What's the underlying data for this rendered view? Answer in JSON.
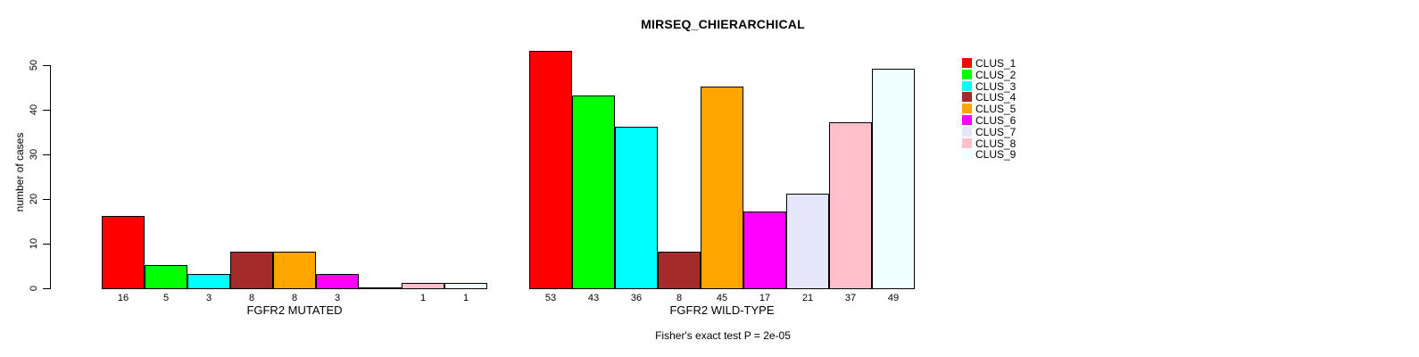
{
  "chart_data": {
    "type": "bar",
    "title": "MIRSEQ_CHIERARCHICAL",
    "ylabel": "number of cases",
    "footnote": "Fisher's exact test P = 2e-05",
    "yticks": [
      0,
      10,
      20,
      30,
      40,
      50
    ],
    "ylim": [
      0,
      53
    ],
    "grid": false,
    "legend_position": "right",
    "categories": [
      "CLUS_1",
      "CLUS_2",
      "CLUS_3",
      "CLUS_4",
      "CLUS_5",
      "CLUS_6",
      "CLUS_7",
      "CLUS_8",
      "CLUS_9"
    ],
    "colors": [
      "#FF0000",
      "#00FF00",
      "#00FFFF",
      "#A52A2A",
      "#FFA500",
      "#FF00FF",
      "#E6E6FA",
      "#FFC0CB",
      "#F0FFFF"
    ],
    "bar_border_color": "#000000",
    "series": [
      {
        "name": "FGFR2 MUTATED",
        "values": [
          16,
          5,
          3,
          8,
          8,
          3,
          0,
          1,
          1
        ],
        "bar_labels": [
          "16",
          "5",
          "3",
          "8",
          "8",
          "3",
          "",
          "1",
          "1"
        ]
      },
      {
        "name": "FGFR2 WILD-TYPE",
        "values": [
          53,
          43,
          36,
          8,
          45,
          17,
          21,
          37,
          49
        ],
        "bar_labels": [
          "53",
          "43",
          "36",
          "8",
          "45",
          "17",
          "21",
          "37",
          "49"
        ]
      }
    ],
    "legend": [
      {
        "label": "CLUS_1",
        "color": "#FF0000"
      },
      {
        "label": "CLUS_2",
        "color": "#00FF00"
      },
      {
        "label": "CLUS_3",
        "color": "#00FFFF"
      },
      {
        "label": "CLUS_4",
        "color": "#A52A2A"
      },
      {
        "label": "CLUS_5",
        "color": "#FFA500"
      },
      {
        "label": "CLUS_6",
        "color": "#FF00FF"
      },
      {
        "label": "CLUS_7",
        "color": "#E6E6FA"
      },
      {
        "label": "CLUS_8",
        "color": "#FFC0CB"
      },
      {
        "label": "CLUS_9",
        "color": "#F0FFFF"
      }
    ]
  }
}
